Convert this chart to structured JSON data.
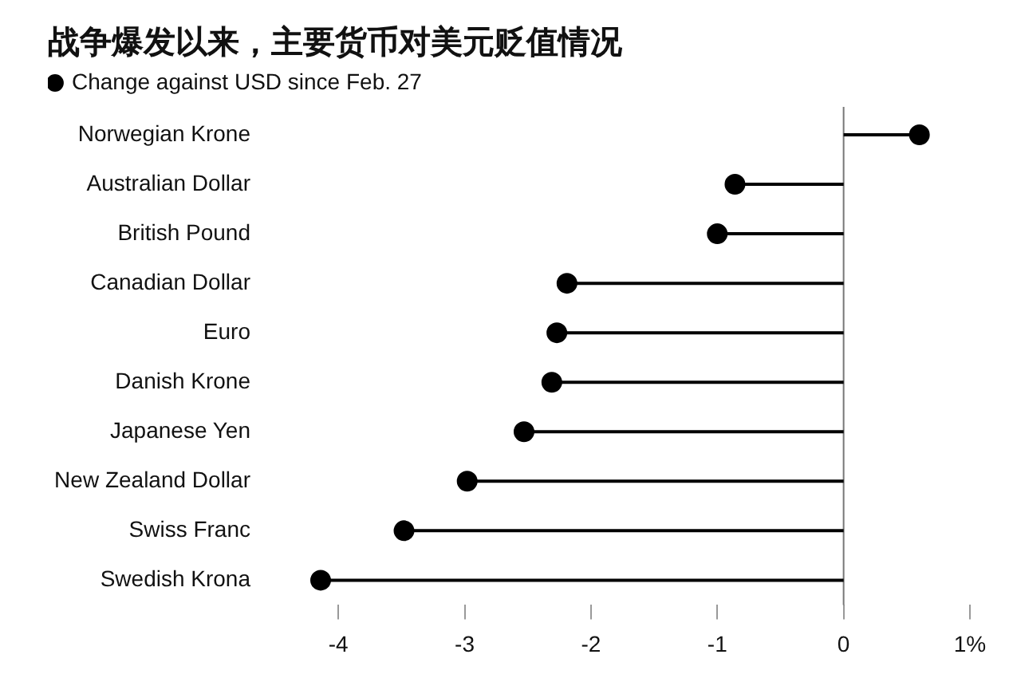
{
  "chart_data": {
    "type": "lollipop",
    "orientation": "horizontal",
    "title": "战争爆发以来，主要货币对美元贬值情况",
    "categories": [
      "Norwegian Krone",
      "Australian Dollar",
      "British Pound",
      "Canadian Dollar",
      "Euro",
      "Danish Krone",
      "Japanese Yen",
      "New Zealand Dollar",
      "Swiss Franc",
      "Swedish Krona"
    ],
    "series": [
      {
        "name": "Change against USD since Feb. 27",
        "color": "#000000",
        "values": [
          0.6,
          -0.86,
          -1.0,
          -2.19,
          -2.27,
          -2.31,
          -2.53,
          -2.98,
          -3.48,
          -4.14
        ]
      }
    ],
    "xlim": [
      -4.14,
      1
    ],
    "xticks": [
      -4,
      -3,
      -2,
      -1,
      0,
      {
        "value": 1,
        "label": "1%"
      }
    ],
    "legend": "top left",
    "marker": "circle"
  }
}
